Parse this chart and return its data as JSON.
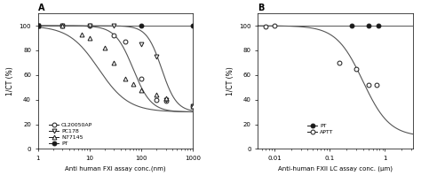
{
  "panel_A": {
    "title": "A",
    "xlabel": "Anti human FXI assay conc.(nm)",
    "ylabel": "1/CT (%)",
    "xlim": [
      1,
      1000
    ],
    "ylim": [
      0,
      110
    ],
    "yticks": [
      0,
      20,
      40,
      60,
      80,
      100
    ],
    "series": {
      "CL20050AP": {
        "x_data": [
          1,
          3,
          10,
          30,
          50,
          100,
          200,
          300,
          1000
        ],
        "y_data": [
          100,
          100,
          100,
          92,
          87,
          57,
          40,
          39,
          35
        ],
        "marker": "o",
        "filled": false,
        "curve_ec50": 70,
        "curve_bottom": 30,
        "curve_hill": 2.5
      },
      "PC178": {
        "x_data": [
          1,
          3,
          10,
          30,
          100,
          200,
          300,
          1000
        ],
        "y_data": [
          100,
          100,
          100,
          100,
          85,
          75,
          40,
          35
        ],
        "marker": "v",
        "filled": false,
        "curve_ec50": 250,
        "curve_bottom": 30,
        "curve_hill": 3.0
      },
      "N77145": {
        "x_data": [
          1,
          3,
          7,
          10,
          20,
          30,
          50,
          70,
          100,
          200,
          300,
          1000
        ],
        "y_data": [
          100,
          100,
          93,
          90,
          82,
          70,
          57,
          53,
          48,
          44,
          41,
          35
        ],
        "marker": "^",
        "filled": false,
        "curve_ec50": 15,
        "curve_bottom": 30,
        "curve_hill": 1.5
      },
      "PT": {
        "x_data": [
          1,
          100,
          1000
        ],
        "y_data": [
          100,
          100,
          100
        ],
        "marker": "o",
        "filled": true,
        "curve_ec50": null,
        "curve_bottom": null,
        "curve_hill": null
      }
    },
    "legend_order": [
      "CL20050AP",
      "PC178",
      "N77145",
      "PT"
    ]
  },
  "panel_B": {
    "title": "B",
    "xlabel": "Anti-human FXII LC assay conc. (μm)",
    "ylabel": "1/CT (%)",
    "xlim_log": [
      -2.3,
      0.5
    ],
    "ylim": [
      0,
      110
    ],
    "yticks": [
      0,
      20,
      40,
      60,
      80,
      100
    ],
    "xticks_log": [
      -2,
      -1,
      0
    ],
    "xtick_labels": [
      "0,01",
      "0,1",
      "1"
    ],
    "series": {
      "PT": {
        "x_data": [
          0.25,
          0.5,
          0.75
        ],
        "y_data": [
          100,
          100,
          100
        ],
        "marker": "o",
        "filled": true,
        "curve_ec50": null,
        "curve_bottom": null,
        "curve_hill": null
      },
      "APTT": {
        "x_data": [
          0.007,
          0.01,
          0.15,
          0.3,
          0.5,
          0.7
        ],
        "y_data": [
          99,
          100,
          70,
          65,
          52,
          52
        ],
        "marker": "o",
        "filled": false,
        "curve_ec50": 0.4,
        "curve_bottom": 10,
        "curve_hill": 1.8
      }
    },
    "legend_order": [
      "PT",
      "APTT"
    ]
  },
  "marker_color": "#1a1a1a",
  "line_color": "#555555"
}
